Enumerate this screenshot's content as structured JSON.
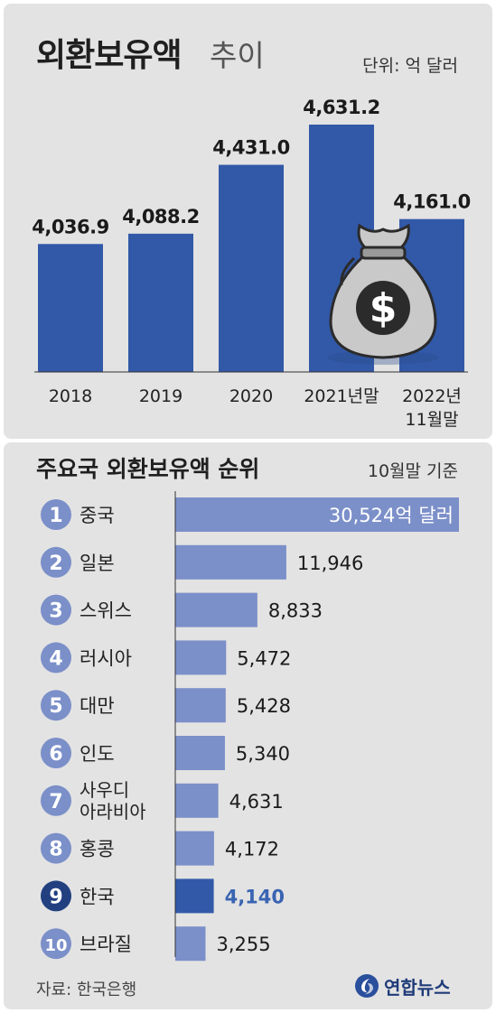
{
  "header": {
    "title_main": "외환보유액",
    "title_sub": "추이",
    "unit": "단위: 억 달러"
  },
  "ranking_header": {
    "title": "주요국 외환보유액 순위",
    "basis": "10월말 기준"
  },
  "footer": {
    "source": "자료: 한국은행",
    "brand": "연합뉴스"
  },
  "colors": {
    "bar_dark": "#3259a8",
    "bar_light": "#7b8fc9",
    "highlight_text": "#3a64b2",
    "badge": "#7b8fc9",
    "badge_highlight": "#223f80",
    "background": "#e3e3e3"
  },
  "icons": {
    "money_bag": "money-bag-icon",
    "brand_logo": "yonhap-logo-icon"
  },
  "chart_data": [
    {
      "type": "bar",
      "categories": [
        "2018",
        "2019",
        "2020",
        "2021년말",
        "2022년 11월말"
      ],
      "values": [
        4036.9,
        4088.2,
        4431.0,
        4631.2,
        4161.0
      ],
      "value_labels": [
        "4,036.9",
        "4,088.2",
        "4,431.0",
        "4,631.2",
        "4,161.0"
      ],
      "title": "외환보유액 추이",
      "unit": "억 달러",
      "highlight_index": 4
    },
    {
      "type": "bar",
      "orientation": "horizontal",
      "title": "주요국 외환보유액 순위",
      "ranks": [
        "1",
        "2",
        "3",
        "4",
        "5",
        "6",
        "7",
        "8",
        "9",
        "10"
      ],
      "categories": [
        "중국",
        "일본",
        "스위스",
        "러시아",
        "대만",
        "인도",
        "사우디 아라비아",
        "홍콩",
        "한국",
        "브라질"
      ],
      "values": [
        30524,
        11946,
        8833,
        5472,
        5428,
        5340,
        4631,
        4172,
        4140,
        3255
      ],
      "value_labels": [
        "30,524억 달러",
        "11,946",
        "8,833",
        "5,472",
        "5,428",
        "5,340",
        "4,631",
        "4,172",
        "4,140",
        "3,255"
      ],
      "highlight_index": 8
    }
  ]
}
